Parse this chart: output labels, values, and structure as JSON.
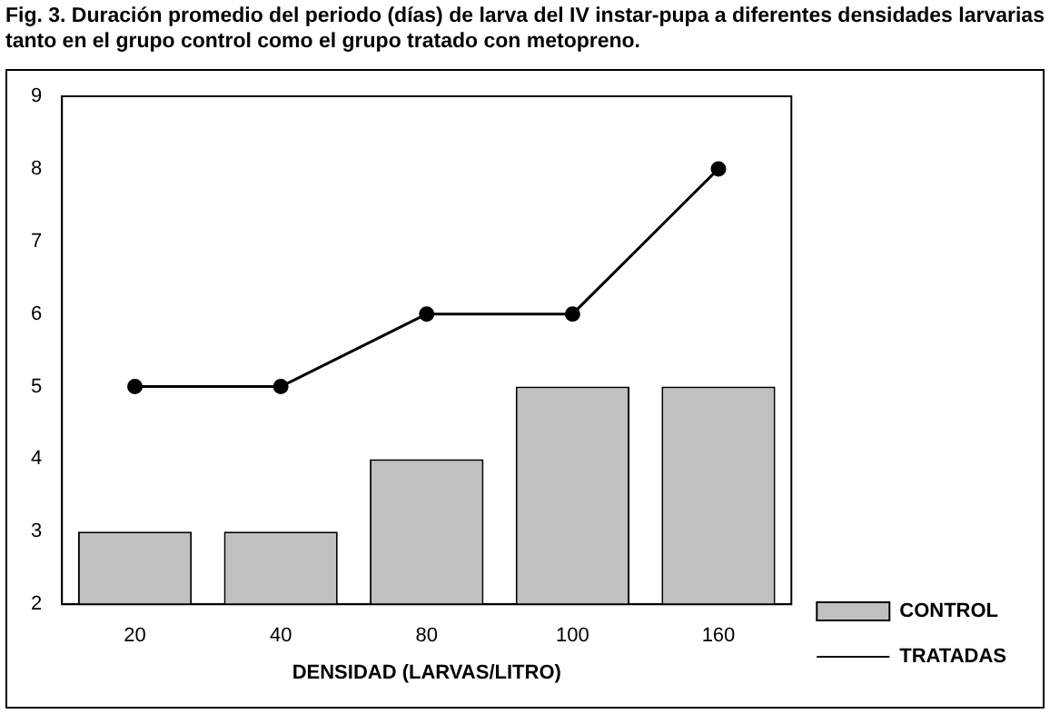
{
  "chart_data": {
    "type": "bar",
    "title": "Fig. 3. Duración promedio del periodo (días) de larva del IV instar-pupa a diferentes densidades larvarias tanto en el grupo control como el grupo tratado con metopreno.",
    "xlabel": "DENSIDAD (LARVAS/LITRO)",
    "categories": [
      "20",
      "40",
      "80",
      "100",
      "160"
    ],
    "series": [
      {
        "name": "CONTROL",
        "color": "#c0c0c0",
        "values": [
          3,
          3,
          4,
          5,
          5
        ]
      },
      {
        "name": "TRATADAS",
        "type": "line",
        "color": "#000000",
        "values": [
          5,
          5,
          6,
          6,
          8
        ]
      }
    ],
    "ylim": [
      2,
      9
    ],
    "yticks": [
      2,
      3,
      4,
      5,
      6,
      7,
      8,
      9
    ],
    "grid": false,
    "legend": "right bottom",
    "marker": "circle",
    "line_style": "solid"
  }
}
